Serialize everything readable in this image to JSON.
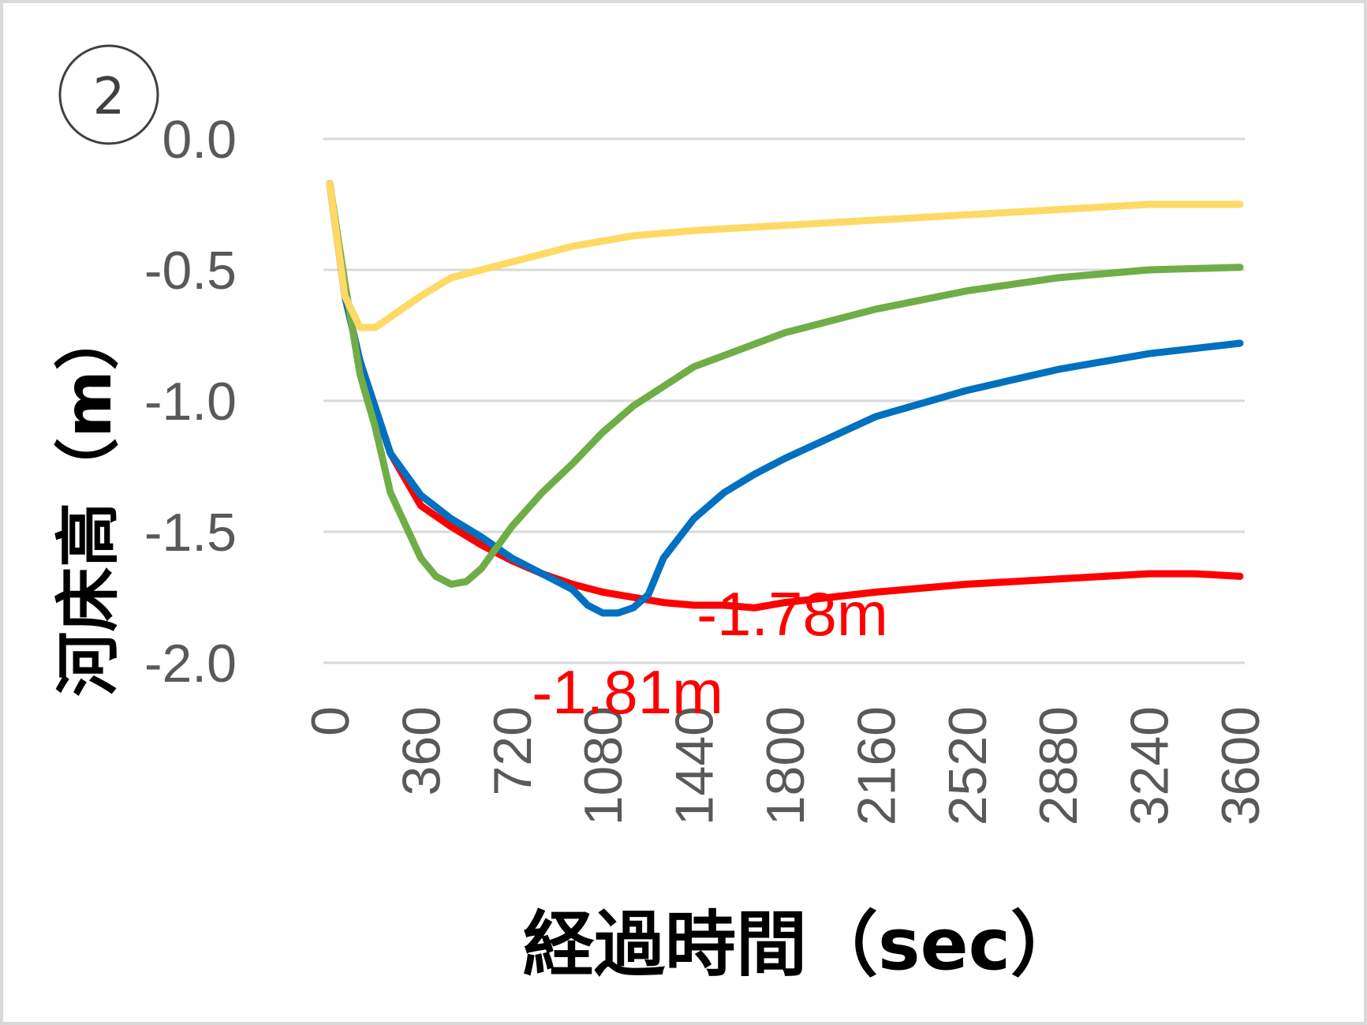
{
  "panel_marker": "2",
  "chart_data": {
    "type": "line",
    "title": "",
    "xlabel": "経過時間（sec）",
    "ylabel": "河床高（m）",
    "ylim": [
      -2.0,
      0.0
    ],
    "xlim": [
      0,
      3600
    ],
    "y_ticks": [
      "0.0",
      "-0.5",
      "-1.0",
      "-1.5",
      "-2.0"
    ],
    "y_tick_values": [
      0.0,
      -0.5,
      -1.0,
      -1.5,
      -2.0
    ],
    "x_ticks": [
      "0",
      "360",
      "720",
      "1080",
      "1440",
      "1800",
      "2160",
      "2520",
      "2880",
      "3240",
      "3600"
    ],
    "x_tick_values": [
      0,
      360,
      720,
      1080,
      1440,
      1800,
      2160,
      2520,
      2880,
      3240,
      3600
    ],
    "grid": true,
    "legend": "none",
    "series": [
      {
        "color": "#ff0000",
        "x": [
          0,
          60,
          120,
          240,
          360,
          480,
          600,
          720,
          840,
          960,
          1080,
          1200,
          1320,
          1440,
          1560,
          1680,
          1800,
          2160,
          2520,
          2880,
          3240,
          3420,
          3600
        ],
        "y": [
          -0.17,
          -0.6,
          -0.85,
          -1.2,
          -1.4,
          -1.48,
          -1.55,
          -1.61,
          -1.66,
          -1.7,
          -1.73,
          -1.75,
          -1.77,
          -1.78,
          -1.78,
          -1.79,
          -1.77,
          -1.73,
          -1.7,
          -1.68,
          -1.66,
          -1.66,
          -1.67
        ]
      },
      {
        "color": "#0070c0",
        "x": [
          0,
          60,
          120,
          240,
          360,
          480,
          600,
          720,
          840,
          960,
          1020,
          1080,
          1140,
          1200,
          1260,
          1320,
          1440,
          1560,
          1680,
          1800,
          2160,
          2520,
          2880,
          3240,
          3600
        ],
        "y": [
          -0.17,
          -0.6,
          -0.85,
          -1.2,
          -1.36,
          -1.45,
          -1.52,
          -1.6,
          -1.66,
          -1.72,
          -1.78,
          -1.81,
          -1.81,
          -1.79,
          -1.74,
          -1.6,
          -1.45,
          -1.35,
          -1.28,
          -1.22,
          -1.06,
          -0.96,
          -0.88,
          -0.82,
          -0.78
        ]
      },
      {
        "color": "#70ad47",
        "x": [
          0,
          60,
          120,
          180,
          240,
          360,
          420,
          480,
          540,
          600,
          660,
          720,
          840,
          960,
          1080,
          1200,
          1440,
          1800,
          2160,
          2520,
          2880,
          3240,
          3600
        ],
        "y": [
          -0.17,
          -0.55,
          -0.9,
          -1.1,
          -1.35,
          -1.6,
          -1.67,
          -1.7,
          -1.69,
          -1.64,
          -1.56,
          -1.48,
          -1.35,
          -1.24,
          -1.12,
          -1.02,
          -0.87,
          -0.74,
          -0.65,
          -0.58,
          -0.53,
          -0.5,
          -0.49
        ]
      },
      {
        "color": "#ffd966",
        "x": [
          0,
          60,
          120,
          180,
          240,
          360,
          480,
          600,
          720,
          840,
          960,
          1080,
          1200,
          1440,
          1800,
          2160,
          2520,
          2880,
          3240,
          3600
        ],
        "y": [
          -0.17,
          -0.6,
          -0.72,
          -0.72,
          -0.68,
          -0.6,
          -0.53,
          -0.5,
          -0.47,
          -0.44,
          -0.41,
          -0.39,
          -0.37,
          -0.35,
          -0.33,
          -0.31,
          -0.29,
          -0.27,
          -0.25,
          -0.25
        ]
      }
    ],
    "annotations": [
      {
        "text": "-1.78m",
        "color": "#ff0000",
        "x": 1560,
        "y": -1.78
      },
      {
        "text": "-1.81m",
        "color": "#ff0000",
        "x": 1080,
        "y": -1.81
      }
    ]
  }
}
